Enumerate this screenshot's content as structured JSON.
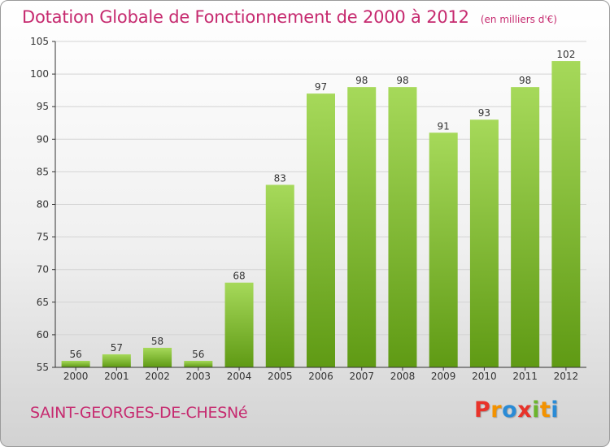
{
  "header": {
    "title": "Dotation Globale de Fonctionnement de 2000 à 2012",
    "unit_note": "(en milliers d'€)"
  },
  "footer": {
    "commune": "SAINT-GEORGES-DE-CHESNé",
    "brand": "Proxiti",
    "brand_letters": [
      {
        "char": "P",
        "color": "#e8332a"
      },
      {
        "char": "r",
        "color": "#f39200"
      },
      {
        "char": "o",
        "color": "#2a8bd6"
      },
      {
        "char": "x",
        "color": "#e8332a"
      },
      {
        "char": "i",
        "color": "#6cb52d"
      },
      {
        "char": "t",
        "color": "#f39200"
      },
      {
        "char": "i",
        "color": "#2a8bd6"
      }
    ]
  },
  "colors": {
    "title": "#c62a6f",
    "bar_light": "#a6d95a",
    "bar_dark": "#5f9a14",
    "grid": "#d4d4d4",
    "axis": "#333333"
  },
  "chart_data": {
    "type": "bar",
    "title": "Dotation Globale de Fonctionnement de 2000 à 2012",
    "subtitle": "(en milliers d'€)",
    "categories": [
      "2000",
      "2001",
      "2002",
      "2003",
      "2004",
      "2005",
      "2006",
      "2007",
      "2008",
      "2009",
      "2010",
      "2011",
      "2012"
    ],
    "values": [
      56,
      57,
      58,
      56,
      68,
      83,
      97,
      98,
      98,
      91,
      93,
      98,
      102
    ],
    "value_labels": [
      "56",
      "57",
      "58",
      "56",
      "68",
      "83",
      "97",
      "98",
      "98",
      "91",
      "93",
      "98",
      "102"
    ],
    "ylim": [
      55,
      105
    ],
    "yticks": [
      55,
      60,
      65,
      70,
      75,
      80,
      85,
      90,
      95,
      100,
      105
    ],
    "ytick_labels": [
      "55",
      "60",
      "65",
      "70",
      "75",
      "80",
      "85",
      "90",
      "95",
      "100",
      "105"
    ],
    "xlabel": "",
    "ylabel": "",
    "grid": true,
    "legend": "none"
  }
}
